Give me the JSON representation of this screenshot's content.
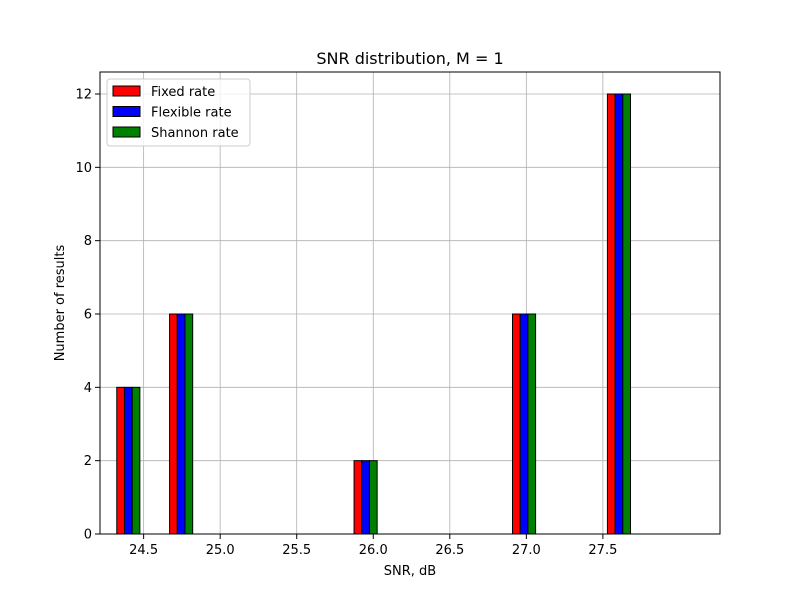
{
  "chart_data": {
    "type": "bar",
    "title": "SNR distribution, M = 1",
    "xlabel": "SNR, dB",
    "ylabel": "Number of results",
    "xlim": [
      24.215,
      28.265
    ],
    "ylim": [
      0,
      12.6
    ],
    "x_ticks": [
      "24.5",
      "25.0",
      "25.5",
      "26.0",
      "26.5",
      "27.0",
      "27.5"
    ],
    "x_tick_values": [
      24.5,
      25.0,
      25.5,
      26.0,
      26.5,
      27.0,
      27.5
    ],
    "y_ticks": [
      "0",
      "2",
      "4",
      "6",
      "8",
      "10",
      "12"
    ],
    "y_tick_values": [
      0,
      2,
      4,
      6,
      8,
      10,
      12
    ],
    "grid": true,
    "legend_position": "top-left",
    "bin_centers": [
      24.4,
      24.745,
      25.09,
      25.435,
      25.78,
      26.125,
      26.47,
      26.815,
      27.16,
      27.505,
      27.85
    ],
    "group_centers": [
      24.4,
      24.745,
      25.09,
      25.435,
      25.95,
      26.125,
      26.47,
      26.985,
      27.33,
      27.605,
      27.85
    ],
    "series": [
      {
        "name": "Fixed rate",
        "color": "#ff0000",
        "values": [
          4,
          6,
          0,
          0,
          2,
          0,
          0,
          6,
          0,
          12,
          0
        ]
      },
      {
        "name": "Flexible rate",
        "color": "#0000ff",
        "values": [
          4,
          6,
          0,
          0,
          2,
          0,
          0,
          6,
          0,
          12,
          0
        ]
      },
      {
        "name": "Shannon rate",
        "color": "#008000",
        "values": [
          4,
          6,
          0,
          0,
          2,
          0,
          0,
          6,
          0,
          12,
          0
        ]
      }
    ]
  }
}
